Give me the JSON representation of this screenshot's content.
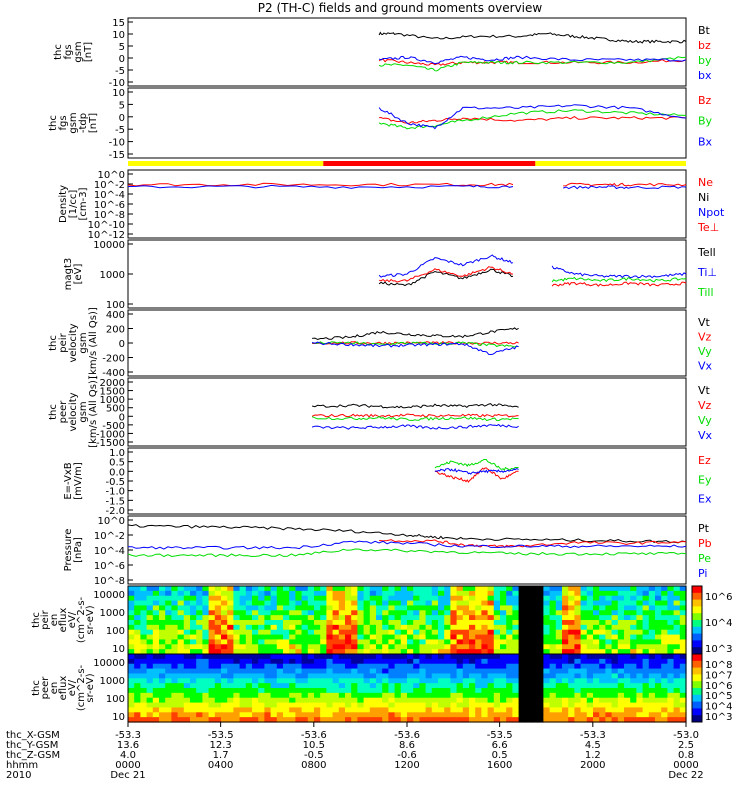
{
  "title": "P2 (TH-C) fields and ground moments overview",
  "colors": {
    "black": "#000000",
    "red": "#ff0000",
    "green": "#00dd00",
    "blue": "#0000ff",
    "yellow": "#ffff00"
  },
  "mode_bar": [
    {
      "from": 0.0,
      "to": 0.35,
      "color": "#ffff00"
    },
    {
      "from": 0.35,
      "to": 0.73,
      "color": "#ff0000"
    },
    {
      "from": 0.73,
      "to": 1.0,
      "color": "#ffff00"
    }
  ],
  "chart_data": [
    {
      "type": "line",
      "panel": "fgs_gsm",
      "ylabel": [
        "thc",
        "fgs",
        "gsm",
        "[nT]"
      ],
      "yticks": [
        "15",
        "10",
        "5",
        "0",
        "-5",
        "-10"
      ],
      "ylim": [
        -10,
        16
      ],
      "legend": [
        {
          "label": "Bt",
          "color": "#000000"
        },
        {
          "label": "bz",
          "color": "#ff0000"
        },
        {
          "label": "by",
          "color": "#00dd00"
        },
        {
          "label": "bx",
          "color": "#0000ff"
        }
      ],
      "series": [
        {
          "name": "Bt",
          "color": "#000000",
          "x": [
            0.45,
            0.48,
            0.55,
            0.62,
            0.7,
            0.75,
            0.8,
            0.85,
            0.9,
            0.95,
            1.0
          ],
          "y": [
            10,
            10,
            8,
            9,
            9,
            10,
            9,
            8,
            7,
            7,
            7
          ]
        },
        {
          "name": "bz",
          "color": "#ff0000",
          "x": [
            0.45,
            0.5,
            0.55,
            0.6,
            0.65,
            0.7,
            0.8,
            0.9,
            1.0
          ],
          "y": [
            0,
            -1,
            -2,
            -1,
            -1,
            -1,
            -1,
            -1,
            0
          ]
        },
        {
          "name": "by",
          "color": "#00dd00",
          "x": [
            0.45,
            0.5,
            0.55,
            0.6,
            0.65,
            0.7,
            0.8,
            0.9,
            1.0
          ],
          "y": [
            -2,
            -2,
            -4,
            -1,
            -1,
            -1,
            -1,
            -1,
            1
          ]
        },
        {
          "name": "bx",
          "color": "#0000ff",
          "x": [
            0.45,
            0.5,
            0.55,
            0.6,
            0.65,
            0.7,
            0.8,
            0.9,
            1.0
          ],
          "y": [
            0,
            1,
            -1,
            1,
            0,
            1,
            0,
            0,
            0
          ]
        }
      ]
    },
    {
      "type": "line",
      "panel": "fgs_gse",
      "ylabel": [
        "thc",
        "fgs",
        "gsm",
        "-tdp",
        "[nT]"
      ],
      "yticks": [
        "10",
        "5",
        "0",
        "-5",
        "-10",
        "-15"
      ],
      "ylim": [
        -18,
        10
      ],
      "legend": [
        {
          "label": "Bz",
          "color": "#ff0000"
        },
        {
          "label": "By",
          "color": "#00dd00"
        },
        {
          "label": "Bx",
          "color": "#0000ff"
        }
      ],
      "series": [
        {
          "name": "Bz",
          "color": "#ff0000",
          "x": [
            0.45,
            0.5,
            0.55,
            0.6,
            0.7,
            0.8,
            0.9,
            1.0
          ],
          "y": [
            -2,
            -4,
            -3,
            -2,
            -3,
            -2,
            -2,
            -2
          ]
        },
        {
          "name": "By",
          "color": "#00dd00",
          "x": [
            0.45,
            0.5,
            0.55,
            0.6,
            0.7,
            0.8,
            0.9,
            1.0
          ],
          "y": [
            -4,
            -6,
            -5,
            -3,
            0,
            1,
            0,
            -1
          ]
        },
        {
          "name": "Bx",
          "color": "#0000ff",
          "x": [
            0.45,
            0.5,
            0.55,
            0.6,
            0.7,
            0.8,
            0.9,
            1.0
          ],
          "y": [
            2,
            -4,
            -6,
            2,
            2,
            3,
            2,
            -2
          ]
        }
      ]
    },
    {
      "type": "line",
      "panel": "density",
      "ylabel": [
        "Density",
        "[1/cc]",
        "[cm-3]"
      ],
      "yticks": [
        "10^0",
        "10^-2",
        "10^-4",
        "10^-6",
        "10^-8",
        "10^-10",
        "10^-12"
      ],
      "ylim": [
        -13,
        1
      ],
      "log": true,
      "legend": [
        {
          "label": "Ne",
          "color": "#ff0000"
        },
        {
          "label": "Ni",
          "color": "#000000"
        },
        {
          "label": "Npot",
          "color": "#0000ff"
        },
        {
          "label": "Te⊥",
          "color": "#ff0000"
        }
      ],
      "series": [
        {
          "name": "Ne",
          "color": "#ff0000",
          "x": [
            0.0,
            0.2,
            0.4,
            0.6,
            0.69
          ],
          "y": [
            -2,
            -2,
            -2,
            -2,
            -2
          ]
        },
        {
          "name": "Npot",
          "color": "#0000ff",
          "x": [
            0.0,
            0.2,
            0.4,
            0.6,
            0.69
          ],
          "y": [
            -2.5,
            -2.4,
            -2.5,
            -2.4,
            -2.4
          ]
        },
        {
          "name": "Ne2",
          "color": "#ff0000",
          "x": [
            0.78,
            0.85,
            0.9,
            1.0
          ],
          "y": [
            -2,
            -2,
            -2,
            -2
          ]
        },
        {
          "name": "Npot2",
          "color": "#0000ff",
          "x": [
            0.78,
            0.85,
            0.9,
            1.0
          ],
          "y": [
            -2.6,
            -2.5,
            -2.6,
            -2.5
          ]
        }
      ]
    },
    {
      "type": "line",
      "panel": "magt3",
      "ylabel": [
        "magt3",
        "[eV]"
      ],
      "yticks": [
        "10000",
        "1000",
        "100"
      ],
      "ylim": [
        1.0,
        4.0
      ],
      "log": true,
      "legend": [
        {
          "label": "Tell",
          "color": "#000000"
        },
        {
          "label": "Ti⊥",
          "color": "#0000ff"
        },
        {
          "label": "Till",
          "color": "#00dd00"
        }
      ],
      "series": [
        {
          "name": "Ti⊥",
          "color": "#0000ff",
          "x": [
            0.45,
            0.5,
            0.55,
            0.6,
            0.65,
            0.69
          ],
          "y": [
            2.4,
            2.5,
            3.2,
            2.9,
            3.3,
            3.0
          ]
        },
        {
          "name": "Tell",
          "color": "#000000",
          "x": [
            0.45,
            0.5,
            0.55,
            0.6,
            0.65,
            0.69
          ],
          "y": [
            2.1,
            2.0,
            2.6,
            2.3,
            2.7,
            2.4
          ]
        },
        {
          "name": "Till",
          "color": "#ff0000",
          "x": [
            0.45,
            0.5,
            0.55,
            0.6,
            0.65,
            0.69
          ],
          "y": [
            2.2,
            2.2,
            2.7,
            2.4,
            2.8,
            2.5
          ]
        },
        {
          "name": "Ti⊥2",
          "color": "#0000ff",
          "x": [
            0.76,
            0.8,
            0.85,
            0.9,
            0.95,
            1.0
          ],
          "y": [
            2.8,
            2.5,
            2.4,
            2.4,
            2.4,
            2.5
          ]
        },
        {
          "name": "Till2",
          "color": "#00dd00",
          "x": [
            0.76,
            0.8,
            0.85,
            0.9,
            0.95,
            1.0
          ],
          "y": [
            2.2,
            2.3,
            2.2,
            2.3,
            2.2,
            2.3
          ]
        },
        {
          "name": "Tell2",
          "color": "#ff0000",
          "x": [
            0.76,
            0.8,
            0.85,
            0.9,
            0.95,
            1.0
          ],
          "y": [
            2.0,
            2.1,
            2.0,
            2.1,
            2.0,
            2.1
          ]
        }
      ]
    },
    {
      "type": "line",
      "panel": "peir_velocity",
      "ylabel": [
        "thc",
        "peir",
        "velocity",
        "gsm",
        "[km/s (All Qs)]"
      ],
      "yticks": [
        "400",
        "200",
        "0",
        "-200",
        "-400"
      ],
      "ylim": [
        -450,
        450
      ],
      "legend": [
        {
          "label": "Vt",
          "color": "#000000"
        },
        {
          "label": "Vz",
          "color": "#ff0000"
        },
        {
          "label": "Vy",
          "color": "#00dd00"
        },
        {
          "label": "Vx",
          "color": "#0000ff"
        }
      ],
      "series": [
        {
          "name": "Vt",
          "color": "#000000",
          "x": [
            0.33,
            0.4,
            0.45,
            0.5,
            0.55,
            0.6,
            0.65,
            0.7
          ],
          "y": [
            50,
            80,
            150,
            120,
            100,
            90,
            150,
            200
          ]
        },
        {
          "name": "Vz",
          "color": "#ff0000",
          "x": [
            0.33,
            0.4,
            0.45,
            0.5,
            0.55,
            0.6,
            0.65,
            0.7
          ],
          "y": [
            0,
            0,
            0,
            0,
            0,
            0,
            0,
            0
          ]
        },
        {
          "name": "Vy",
          "color": "#00dd00",
          "x": [
            0.33,
            0.4,
            0.45,
            0.5,
            0.55,
            0.6,
            0.65,
            0.7
          ],
          "y": [
            0,
            0,
            -20,
            0,
            -10,
            0,
            -30,
            -50
          ]
        },
        {
          "name": "Vx",
          "color": "#0000ff",
          "x": [
            0.33,
            0.4,
            0.45,
            0.5,
            0.55,
            0.6,
            0.65,
            0.7
          ],
          "y": [
            0,
            -20,
            -40,
            -30,
            -20,
            -10,
            -150,
            -50
          ]
        }
      ]
    },
    {
      "type": "line",
      "panel": "peer_velocity",
      "ylabel": [
        "thc",
        "peer",
        "velocity",
        "gsm",
        "[km/s (All Qs)]"
      ],
      "yticks": [
        "2000",
        "1500",
        "1000",
        "500",
        "0",
        "-500",
        "-1000",
        "-1500"
      ],
      "ylim": [
        -1600,
        2000
      ],
      "legend": [
        {
          "label": "Vt",
          "color": "#000000"
        },
        {
          "label": "Vz",
          "color": "#ff0000"
        },
        {
          "label": "Vy",
          "color": "#00dd00"
        },
        {
          "label": "Vx",
          "color": "#0000ff"
        }
      ],
      "series": [
        {
          "name": "Vt",
          "color": "#000000",
          "x": [
            0.33,
            0.4,
            0.45,
            0.5,
            0.55,
            0.6,
            0.65,
            0.7
          ],
          "y": [
            500,
            550,
            500,
            450,
            550,
            500,
            600,
            450
          ]
        },
        {
          "name": "Vz",
          "color": "#ff0000",
          "x": [
            0.33,
            0.4,
            0.45,
            0.5,
            0.55,
            0.6,
            0.65,
            0.7
          ],
          "y": [
            0,
            20,
            0,
            30,
            0,
            20,
            0,
            10
          ]
        },
        {
          "name": "Vy",
          "color": "#00dd00",
          "x": [
            0.33,
            0.4,
            0.45,
            0.5,
            0.55,
            0.6,
            0.65,
            0.7
          ],
          "y": [
            -100,
            -150,
            -100,
            -200,
            -150,
            -100,
            -200,
            -150
          ]
        },
        {
          "name": "Vx",
          "color": "#0000ff",
          "x": [
            0.33,
            0.4,
            0.45,
            0.5,
            0.55,
            0.6,
            0.65,
            0.7
          ],
          "y": [
            -600,
            -650,
            -600,
            -550,
            -650,
            -600,
            -500,
            -550
          ]
        }
      ]
    },
    {
      "type": "line",
      "panel": "efield",
      "ylabel": [
        "E=-VxB",
        "[mV/m]"
      ],
      "yticks": [
        "1.0",
        "0.5",
        "0.0",
        "-0.5",
        "-1.0",
        "-1.5",
        "-2.0"
      ],
      "ylim": [
        -2.2,
        1.2
      ],
      "legend": [
        {
          "label": "Ez",
          "color": "#ff0000"
        },
        {
          "label": "Ey",
          "color": "#00dd00"
        },
        {
          "label": "Ex",
          "color": "#0000ff"
        }
      ],
      "series": [
        {
          "name": "Ey",
          "color": "#00dd00",
          "x": [
            0.55,
            0.58,
            0.61,
            0.64,
            0.67,
            0.7
          ],
          "y": [
            0.2,
            0.5,
            0.3,
            0.6,
            0.1,
            0.2
          ]
        },
        {
          "name": "Ez",
          "color": "#ff0000",
          "x": [
            0.55,
            0.58,
            0.61,
            0.64,
            0.67,
            0.7
          ],
          "y": [
            0.0,
            -0.3,
            -0.5,
            0.2,
            -0.4,
            0.0
          ]
        },
        {
          "name": "Ex",
          "color": "#0000ff",
          "x": [
            0.55,
            0.58,
            0.61,
            0.64,
            0.67,
            0.7
          ],
          "y": [
            0.0,
            0.1,
            -0.1,
            0.0,
            0.0,
            0.1
          ]
        }
      ]
    },
    {
      "type": "line",
      "panel": "pressure",
      "ylabel": [
        "Pressure",
        "[nPa]"
      ],
      "yticks": [
        "10^0",
        "10^-2",
        "10^-4",
        "10^-6",
        "10^-8"
      ],
      "ylim": [
        -8,
        1
      ],
      "log": true,
      "legend": [
        {
          "label": "Pt",
          "color": "#000000"
        },
        {
          "label": "Pb",
          "color": "#ff0000"
        },
        {
          "label": "Pe",
          "color": "#00dd00"
        },
        {
          "label": "Pi",
          "color": "#0000ff"
        }
      ],
      "series": [
        {
          "name": "Pt",
          "color": "#000000",
          "x": [
            0.0,
            0.1,
            0.2,
            0.3,
            0.4,
            0.5,
            0.55,
            0.6,
            0.7,
            0.8,
            0.9,
            1.0
          ],
          "y": [
            -0.3,
            -0.4,
            -0.5,
            -0.7,
            -1.0,
            -1.5,
            -1.8,
            -2.0,
            -2.1,
            -2.2,
            -2.3,
            -2.4
          ]
        },
        {
          "name": "Pb",
          "color": "#ff0000",
          "x": [
            0.45,
            0.55,
            0.6,
            0.65,
            0.7,
            0.8,
            0.9,
            1.0
          ],
          "y": [
            -2.2,
            -2.3,
            -2.8,
            -3.0,
            -3.0,
            -2.5,
            -2.6,
            -2.4
          ]
        },
        {
          "name": "Pi",
          "color": "#0000ff",
          "x": [
            0.0,
            0.1,
            0.2,
            0.3,
            0.4,
            0.5,
            0.6,
            0.7,
            0.8,
            0.9,
            1.0
          ],
          "y": [
            -3.2,
            -3.2,
            -3.2,
            -3.2,
            -2.4,
            -2.6,
            -3.0,
            -3.0,
            -3.0,
            -3.0,
            -3.0
          ]
        },
        {
          "name": "Pe",
          "color": "#00dd00",
          "x": [
            0.0,
            0.1,
            0.2,
            0.3,
            0.4,
            0.5,
            0.6,
            0.7,
            0.8,
            0.9,
            1.0
          ],
          "y": [
            -4.2,
            -4.2,
            -4.2,
            -4.2,
            -3.4,
            -3.6,
            -3.8,
            -4.0,
            -4.0,
            -4.0,
            -4.0
          ]
        }
      ]
    }
  ],
  "spectrograms": [
    {
      "panel": "peir_eflux",
      "ylabel": [
        "thc",
        "peir",
        "en",
        "eflux",
        "eV/",
        "(cm^2-s-",
        "sr-eV)"
      ],
      "yticks": [
        "10000",
        "1000",
        "100",
        "10"
      ],
      "colorbar_ticks": [
        "10^6",
        "10^4",
        "10^3"
      ],
      "gap": [
        0.7,
        0.73
      ]
    },
    {
      "panel": "peer_eflux",
      "ylabel": [
        "thc",
        "peer",
        "en",
        "eflux",
        "eV/",
        "(cm^2-s-",
        "sr-eV)"
      ],
      "yticks": [
        "10000",
        "1000",
        "100",
        "10"
      ],
      "colorbar_ticks": [
        "10^8",
        "10^7",
        "10^6",
        "10^5",
        "10^4",
        "10^3"
      ],
      "gap": [
        0.7,
        0.73
      ]
    }
  ],
  "ephemeris": {
    "rows": [
      {
        "label": "thc_X-GSM",
        "values": [
          "-53.3",
          "-53.5",
          "-53.6",
          "-53.6",
          "-53.5",
          "-53.3",
          "-53.0"
        ]
      },
      {
        "label": "thc_Y-GSM",
        "values": [
          "13.6",
          "12.3",
          "10.5",
          "8.6",
          "6.6",
          "4.5",
          "2.5"
        ]
      },
      {
        "label": "thc_Z-GSM",
        "values": [
          "4.0",
          "1.7",
          "-0.5",
          "-0.6",
          "0.5",
          "1.2",
          "0.8"
        ]
      },
      {
        "label": "hhmm",
        "values": [
          "0000",
          "0400",
          "0800",
          "1200",
          "1600",
          "2000",
          "0000"
        ]
      },
      {
        "label": "2010",
        "values": [
          "Dec 21",
          "",
          "",
          "",
          "",
          "",
          "Dec 22"
        ]
      }
    ]
  }
}
